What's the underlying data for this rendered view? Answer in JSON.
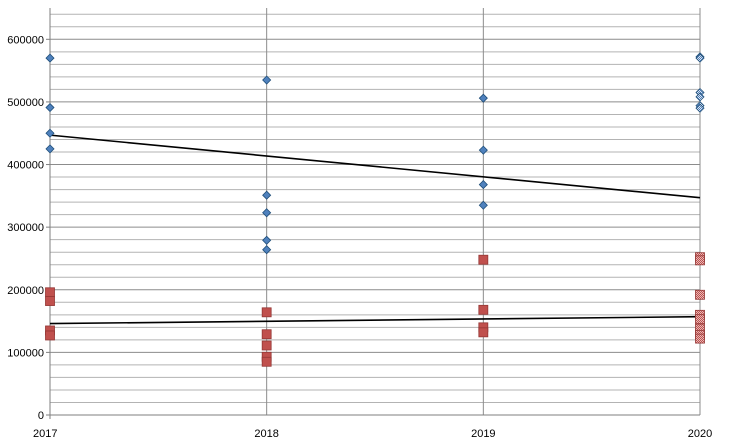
{
  "chart_data": {
    "type": "scatter",
    "title": "",
    "xlabel": "",
    "ylabel": "",
    "x_ticks": [
      "2017",
      "2018",
      "2019",
      "2020"
    ],
    "y_ticks": [
      "0",
      "100000",
      "200000",
      "300000",
      "400000",
      "500000",
      "600000"
    ],
    "xlim": [
      2017,
      2020
    ],
    "ylim": [
      0,
      650000
    ],
    "grid": true,
    "minor_grid_step": 20000,
    "series": [
      {
        "marker": "diamond",
        "color": "#4F81BD",
        "points": [
          {
            "x": 2017,
            "y": 570000
          },
          {
            "x": 2017,
            "y": 491000
          },
          {
            "x": 2017,
            "y": 450000
          },
          {
            "x": 2017,
            "y": 425000
          },
          {
            "x": 2018,
            "y": 535000
          },
          {
            "x": 2018,
            "y": 351000
          },
          {
            "x": 2018,
            "y": 323000
          },
          {
            "x": 2018,
            "y": 279000
          },
          {
            "x": 2018,
            "y": 264000
          },
          {
            "x": 2019,
            "y": 506000
          },
          {
            "x": 2019,
            "y": 423000
          },
          {
            "x": 2019,
            "y": 368000
          },
          {
            "x": 2019,
            "y": 335000
          },
          {
            "x": 2020,
            "y": 572000
          },
          {
            "x": 2020,
            "y": 570000
          },
          {
            "x": 2020,
            "y": 515000
          },
          {
            "x": 2020,
            "y": 508000
          },
          {
            "x": 2020,
            "y": 494000
          },
          {
            "x": 2020,
            "y": 490000
          }
        ],
        "trendline": {
          "x": [
            2017,
            2020
          ],
          "y": [
            447000,
            347000
          ]
        }
      },
      {
        "marker": "square",
        "color": "#C0504D",
        "points": [
          {
            "x": 2017,
            "y": 196000
          },
          {
            "x": 2017,
            "y": 182000
          },
          {
            "x": 2017,
            "y": 135000
          },
          {
            "x": 2017,
            "y": 127000
          },
          {
            "x": 2018,
            "y": 164000
          },
          {
            "x": 2018,
            "y": 129000
          },
          {
            "x": 2018,
            "y": 111000
          },
          {
            "x": 2018,
            "y": 93000
          },
          {
            "x": 2018,
            "y": 85000
          },
          {
            "x": 2019,
            "y": 248000
          },
          {
            "x": 2019,
            "y": 168000
          },
          {
            "x": 2019,
            "y": 140000
          },
          {
            "x": 2019,
            "y": 132000
          },
          {
            "x": 2020,
            "y": 252000
          },
          {
            "x": 2020,
            "y": 247000
          },
          {
            "x": 2020,
            "y": 192000
          },
          {
            "x": 2020,
            "y": 160000
          },
          {
            "x": 2020,
            "y": 153000
          },
          {
            "x": 2020,
            "y": 138000
          },
          {
            "x": 2020,
            "y": 128000
          },
          {
            "x": 2020,
            "y": 122000
          }
        ],
        "trendline": {
          "x": [
            2017,
            2020
          ],
          "y": [
            146000,
            157000
          ]
        }
      }
    ]
  }
}
